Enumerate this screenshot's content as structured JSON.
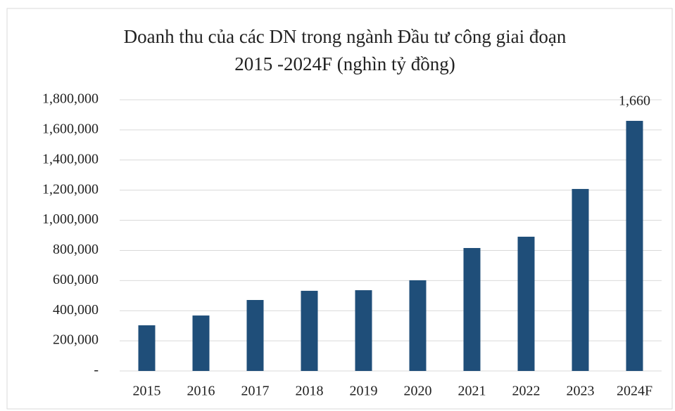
{
  "chart_data": {
    "type": "bar",
    "title": [
      "Doanh thu của các DN trong ngành Đầu tư công giai đoạn",
      "2015 -2024F (nghìn tỷ đồng)"
    ],
    "categories": [
      "2015",
      "2016",
      "2017",
      "2018",
      "2019",
      "2020",
      "2021",
      "2022",
      "2023",
      "2024F"
    ],
    "values": [
      303000,
      368000,
      471000,
      532000,
      536000,
      602000,
      816000,
      891000,
      1208000,
      1660000
    ],
    "value_labels": [
      null,
      null,
      null,
      null,
      null,
      null,
      null,
      null,
      null,
      "1,660"
    ],
    "color": "#1f4e79",
    "ylim": [
      0,
      1800000
    ],
    "yticks": [
      {
        "value": 0,
        "label": "-"
      },
      {
        "value": 200000,
        "label": "200,000"
      },
      {
        "value": 400000,
        "label": "400,000"
      },
      {
        "value": 600000,
        "label": "600,000"
      },
      {
        "value": 800000,
        "label": "800,000"
      },
      {
        "value": 1000000,
        "label": "1,000,000"
      },
      {
        "value": 1200000,
        "label": "1,200,000"
      },
      {
        "value": 1400000,
        "label": "1,400,000"
      },
      {
        "value": 1600000,
        "label": "1,600,000"
      },
      {
        "value": 1800000,
        "label": "1,800,000"
      }
    ],
    "grid": true
  }
}
